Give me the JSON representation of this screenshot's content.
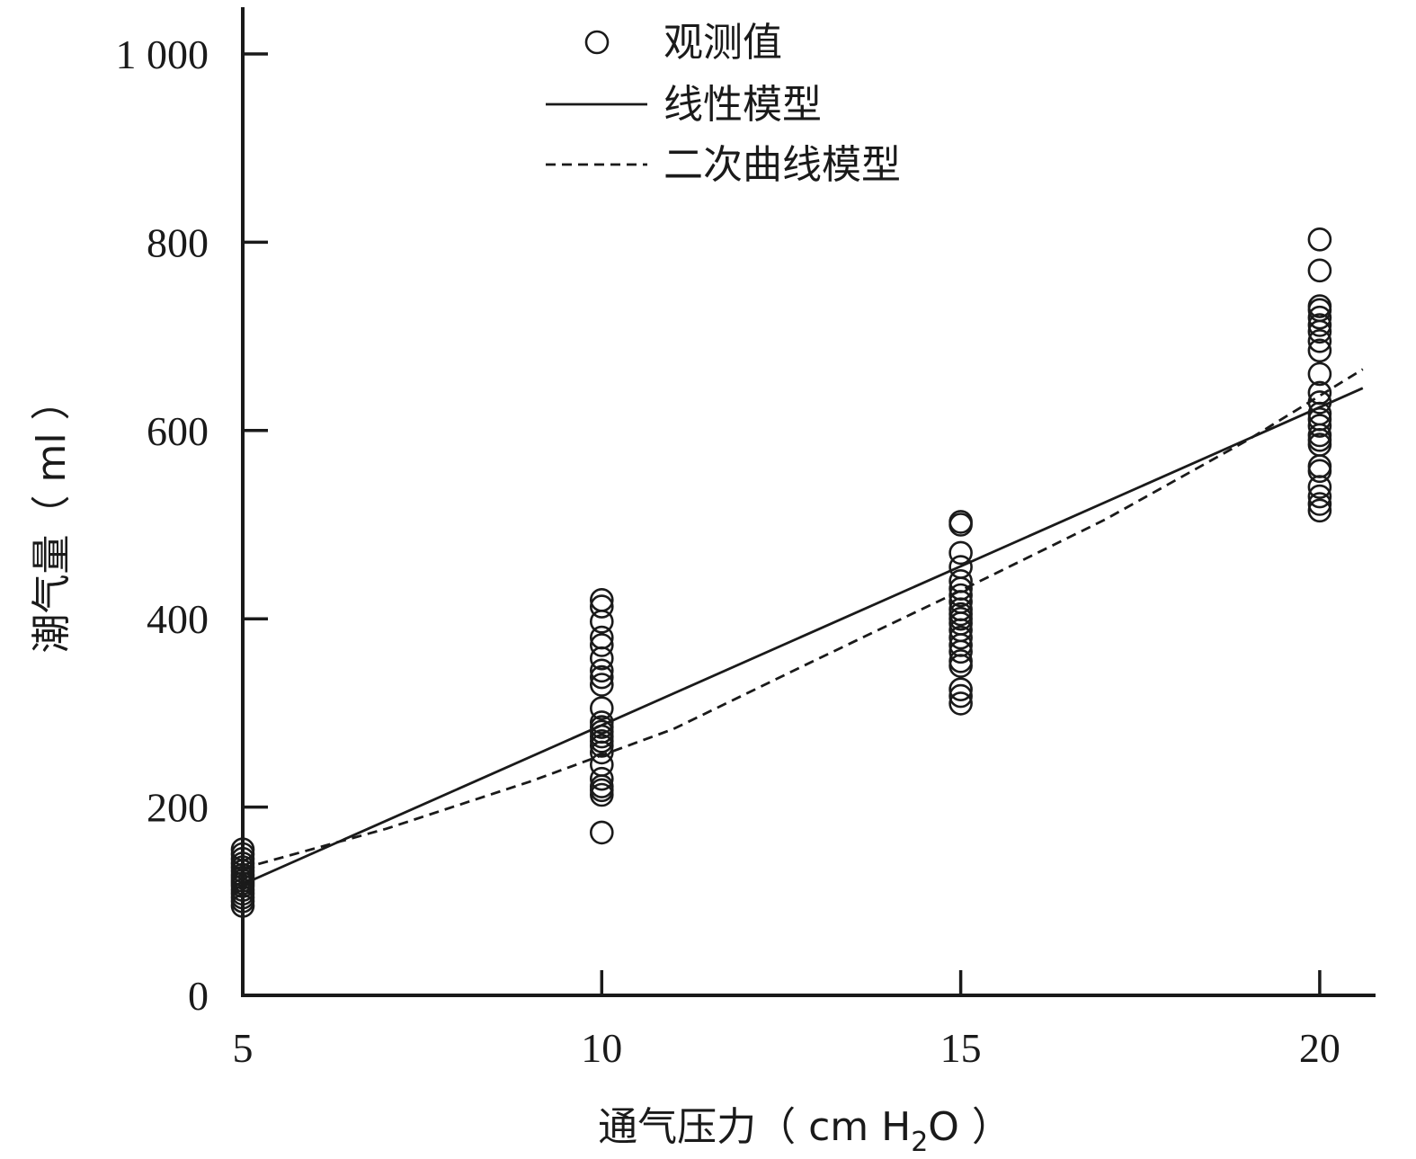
{
  "chart_data": {
    "type": "scatter",
    "title": "",
    "xlabel": "通气压力（ cm H",
    "xlabel_sub": "2",
    "xlabel_tail": "O ）",
    "ylabel": "潮气量（ ml ）",
    "xlim": [
      5,
      20.6
    ],
    "ylim": [
      0,
      1000
    ],
    "x_ticks": [
      5,
      10,
      15,
      20
    ],
    "x_tick_labels": [
      "5",
      "10",
      "15",
      "20"
    ],
    "y_ticks": [
      0,
      200,
      400,
      600,
      800,
      1000
    ],
    "y_tick_labels": [
      "0",
      "200",
      "400",
      "600",
      "800",
      "1 000"
    ],
    "grid": false,
    "legend_position": "top-center",
    "series": [
      {
        "name": "观测值",
        "kind": "scatter",
        "marker": "circle-open",
        "points": [
          [
            5,
            95
          ],
          [
            5,
            100
          ],
          [
            5,
            104
          ],
          [
            5,
            108
          ],
          [
            5,
            112
          ],
          [
            5,
            116
          ],
          [
            5,
            119
          ],
          [
            5,
            122
          ],
          [
            5,
            125
          ],
          [
            5,
            128
          ],
          [
            5,
            132
          ],
          [
            5,
            136
          ],
          [
            5,
            140
          ],
          [
            5,
            145
          ],
          [
            5,
            150
          ],
          [
            5,
            155
          ],
          [
            10,
            173
          ],
          [
            10,
            213
          ],
          [
            10,
            218
          ],
          [
            10,
            222
          ],
          [
            10,
            230
          ],
          [
            10,
            245
          ],
          [
            10,
            258
          ],
          [
            10,
            265
          ],
          [
            10,
            270
          ],
          [
            10,
            275
          ],
          [
            10,
            280
          ],
          [
            10,
            285
          ],
          [
            10,
            290
          ],
          [
            10,
            305
          ],
          [
            10,
            330
          ],
          [
            10,
            338
          ],
          [
            10,
            345
          ],
          [
            10,
            358
          ],
          [
            10,
            372
          ],
          [
            10,
            380
          ],
          [
            10,
            397
          ],
          [
            10,
            413
          ],
          [
            10,
            420
          ],
          [
            15,
            310
          ],
          [
            15,
            318
          ],
          [
            15,
            325
          ],
          [
            15,
            350
          ],
          [
            15,
            355
          ],
          [
            15,
            365
          ],
          [
            15,
            372
          ],
          [
            15,
            380
          ],
          [
            15,
            388
          ],
          [
            15,
            395
          ],
          [
            15,
            400
          ],
          [
            15,
            405
          ],
          [
            15,
            410
          ],
          [
            15,
            418
          ],
          [
            15,
            425
          ],
          [
            15,
            432
          ],
          [
            15,
            440
          ],
          [
            15,
            455
          ],
          [
            15,
            470
          ],
          [
            15,
            500
          ],
          [
            15,
            503
          ],
          [
            20,
            515
          ],
          [
            20,
            522
          ],
          [
            20,
            530
          ],
          [
            20,
            540
          ],
          [
            20,
            557
          ],
          [
            20,
            562
          ],
          [
            20,
            585
          ],
          [
            20,
            590
          ],
          [
            20,
            595
          ],
          [
            20,
            605
          ],
          [
            20,
            612
          ],
          [
            20,
            618
          ],
          [
            20,
            630
          ],
          [
            20,
            640
          ],
          [
            20,
            660
          ],
          [
            20,
            685
          ],
          [
            20,
            695
          ],
          [
            20,
            705
          ],
          [
            20,
            712
          ],
          [
            20,
            720
          ],
          [
            20,
            728
          ],
          [
            20,
            732
          ],
          [
            20,
            770
          ],
          [
            20,
            803
          ]
        ]
      },
      {
        "name": "线性模型",
        "kind": "line",
        "style": "solid",
        "x": [
          5,
          20.6
        ],
        "y": [
          118,
          645
        ]
      },
      {
        "name": "二次曲线模型",
        "kind": "line",
        "style": "dashed",
        "x": [
          5,
          7,
          9,
          11,
          13,
          15,
          17,
          19,
          20.6
        ],
        "y": [
          135,
          177,
          227,
          283,
          357,
          430,
          505,
          590,
          665
        ]
      }
    ]
  }
}
